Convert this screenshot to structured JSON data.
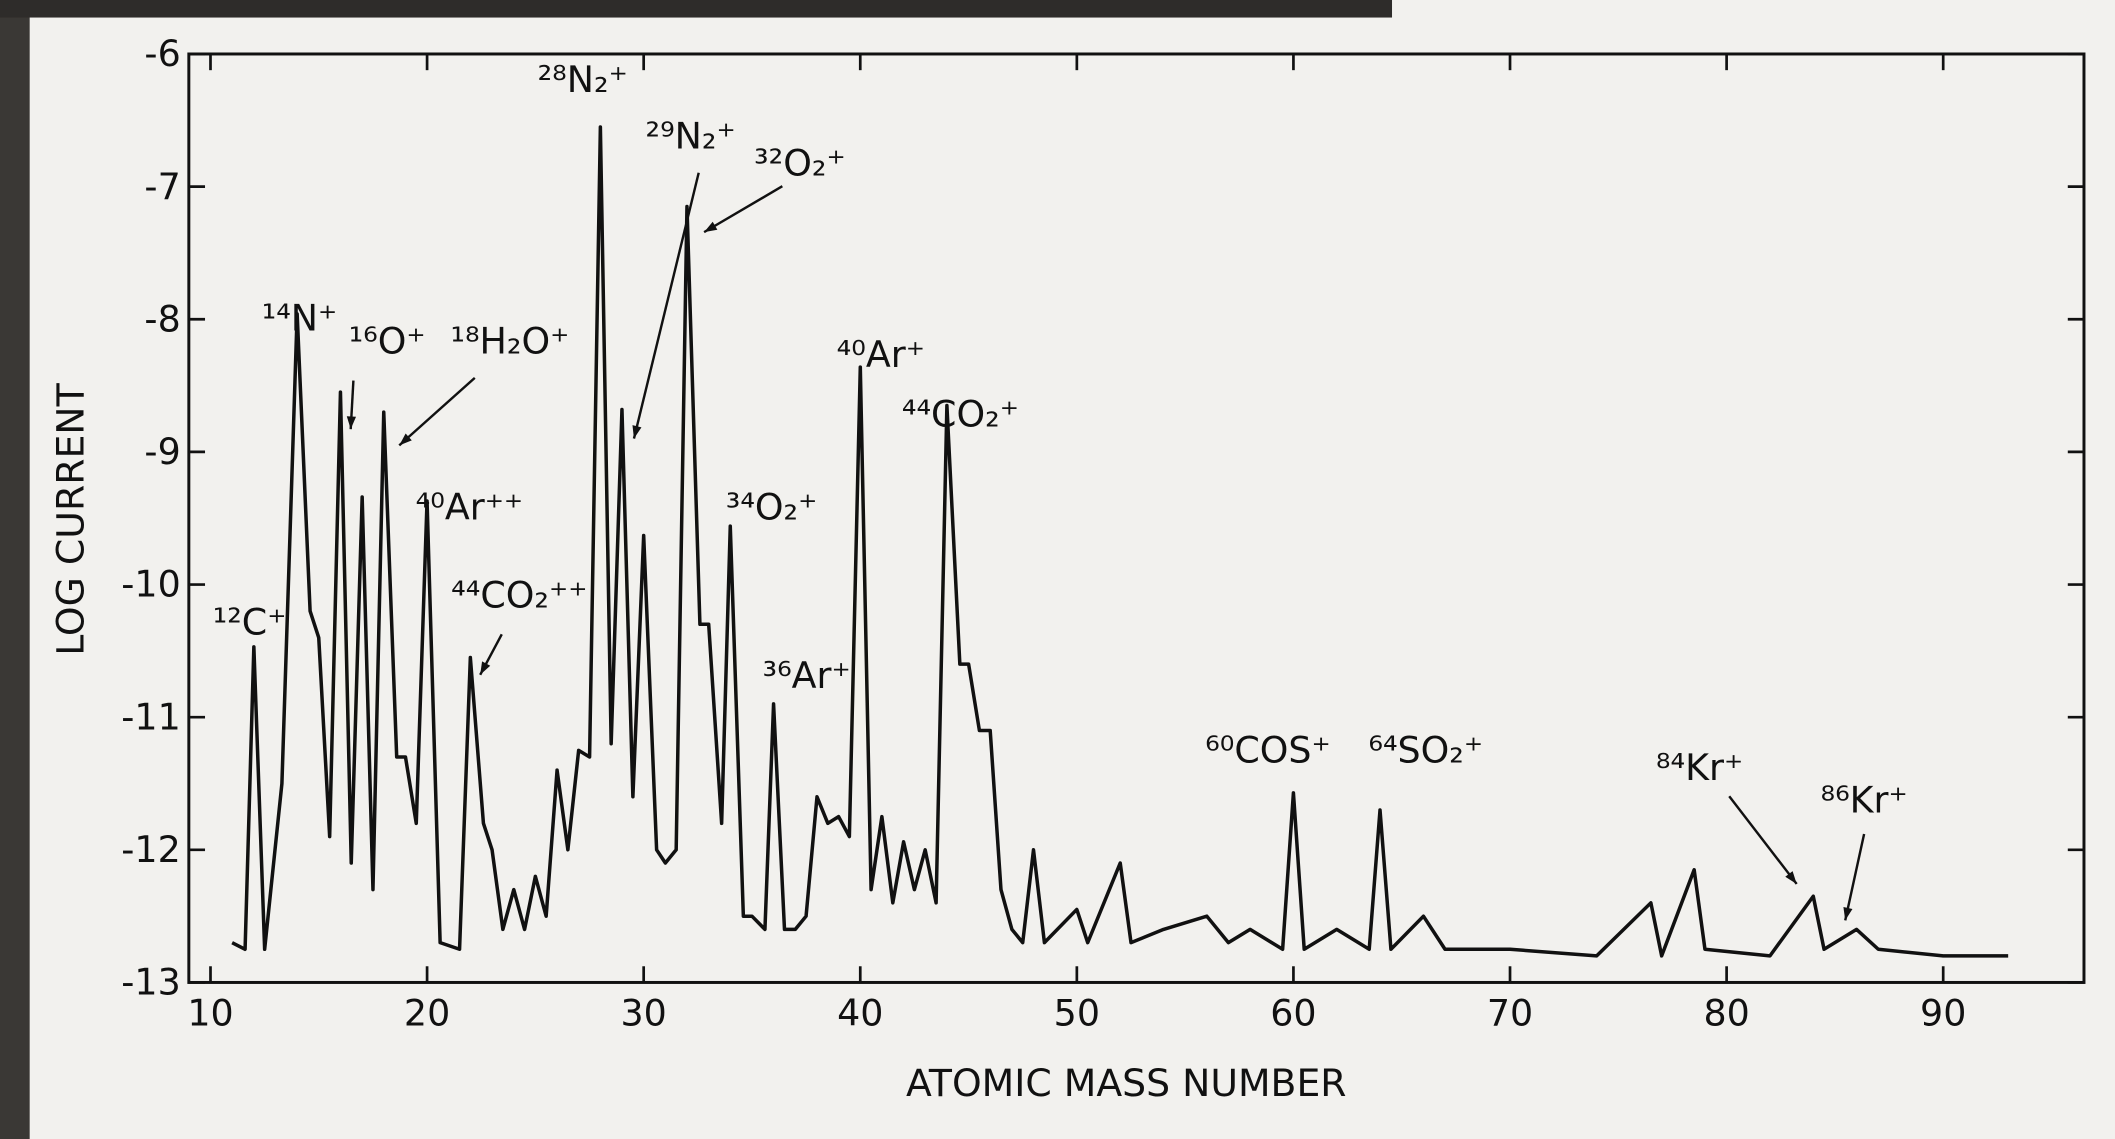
{
  "chart_data": {
    "type": "line",
    "xlabel": "ATOMIC MASS NUMBER",
    "ylabel": "LOG CURRENT",
    "xlim": [
      9,
      96.5
    ],
    "ylim": [
      -13,
      -6
    ],
    "xticks": [
      10,
      20,
      30,
      40,
      50,
      60,
      70,
      80,
      90
    ],
    "yticks": [
      -6,
      -7,
      -8,
      -9,
      -10,
      -11,
      -12,
      -13
    ],
    "grid": false,
    "x": [
      11,
      11.6,
      12,
      12.5,
      13.3,
      14,
      14.6,
      15,
      15.5,
      16,
      16.5,
      17,
      17.5,
      18,
      18.6,
      19,
      19.5,
      20,
      20.6,
      21.5,
      22,
      22.6,
      23,
      23.5,
      24,
      24.5,
      25,
      25.5,
      26,
      26.5,
      27,
      27.5,
      28,
      28.5,
      29,
      29.5,
      30,
      30.6,
      31,
      31.5,
      32,
      32.6,
      33,
      33.6,
      34,
      34.6,
      35,
      35.6,
      36,
      36.5,
      37,
      37.5,
      38,
      38.5,
      39,
      39.5,
      40,
      40.5,
      41,
      41.5,
      42,
      42.5,
      43,
      43.5,
      44,
      44.6,
      45,
      45.5,
      46,
      46.5,
      47,
      47.5,
      48,
      48.5,
      50,
      50.5,
      52,
      52.5,
      54,
      56,
      57,
      58,
      59.5,
      60,
      60.5,
      62,
      63.5,
      64,
      64.5,
      66,
      67,
      70,
      74,
      76.5,
      77,
      78.5,
      79,
      82,
      84,
      84.5,
      86,
      87,
      90,
      93
    ],
    "series": [
      {
        "color": "#111111",
        "values": [
          -12.7,
          -12.75,
          -10.47,
          -12.75,
          -11.5,
          -7.96,
          -10.2,
          -10.4,
          -11.9,
          -8.55,
          -12.1,
          -9.34,
          -12.3,
          -8.7,
          -11.3,
          -11.3,
          -11.8,
          -9.37,
          -12.7,
          -12.75,
          -10.55,
          -11.8,
          -12.0,
          -12.6,
          -12.3,
          -12.6,
          -12.2,
          -12.5,
          -11.4,
          -12.0,
          -11.25,
          -11.3,
          -6.55,
          -11.2,
          -8.68,
          -11.6,
          -9.63,
          -12.0,
          -12.1,
          -12.0,
          -7.15,
          -10.3,
          -10.3,
          -11.8,
          -9.56,
          -12.5,
          -12.5,
          -12.6,
          -10.9,
          -12.6,
          -12.6,
          -12.5,
          -11.6,
          -11.8,
          -11.75,
          -11.9,
          -8.36,
          -12.3,
          -11.75,
          -12.4,
          -11.94,
          -12.3,
          -12.0,
          -12.4,
          -8.65,
          -10.6,
          -10.6,
          -11.1,
          -11.1,
          -12.3,
          -12.6,
          -12.7,
          -12.0,
          -12.7,
          -12.45,
          -12.7,
          -12.1,
          -12.7,
          -12.6,
          -12.5,
          -12.7,
          -12.6,
          -12.75,
          -11.57,
          -12.75,
          -12.6,
          -12.75,
          -11.7,
          -12.75,
          -12.5,
          -12.75,
          -12.75,
          -12.8,
          -12.4,
          -12.8,
          -12.15,
          -12.75,
          -12.8,
          -12.35,
          -12.75,
          -12.6,
          -12.75,
          -12.8,
          -12.8
        ]
      }
    ],
    "annotations": [
      "¹²C⁺",
      "¹⁴N⁺",
      "¹⁶O⁺",
      "¹⁸H₂O⁺",
      "⁴⁰Ar⁺⁺",
      "⁴⁴CO₂⁺⁺",
      "²⁸N₂⁺",
      "²⁹N₂⁺",
      "³²O₂⁺",
      "³⁴O₂⁺",
      "³⁶Ar⁺",
      "⁴⁰Ar⁺",
      "⁴⁴CO₂⁺",
      "⁶⁰COS⁺",
      "⁶⁴SO₂⁺",
      "⁸⁴Kr⁺",
      "⁸⁶Kr⁺"
    ]
  }
}
